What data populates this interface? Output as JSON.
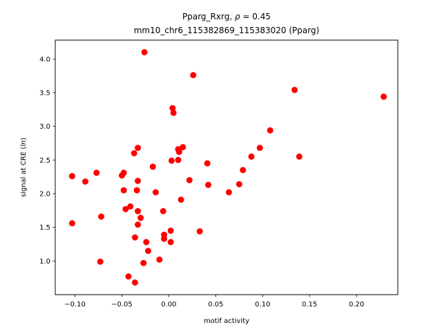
{
  "chart_data": {
    "type": "scatter",
    "title_line1": "Pparg_Rxrg, ρ = 0.45",
    "title_line2": "mm10_chr6_115382869_115383020 (Pparg)",
    "xlabel": "motif activity",
    "ylabel": "signal at CRE (ln)",
    "xlim": [
      -0.121,
      0.244
    ],
    "ylim": [
      0.5,
      4.28
    ],
    "xticks": [
      -0.1,
      -0.05,
      0.0,
      0.05,
      0.1,
      0.15,
      0.2
    ],
    "xtick_labels": [
      "−0.10",
      "−0.05",
      "0.00",
      "0.05",
      "0.10",
      "0.15",
      "0.20"
    ],
    "yticks": [
      1.0,
      1.5,
      2.0,
      2.5,
      3.0,
      3.5,
      4.0
    ],
    "ytick_labels": [
      "1.0",
      "1.5",
      "2.0",
      "2.5",
      "3.0",
      "3.5",
      "4.0"
    ],
    "grid": false,
    "marker_color": "#ff0000",
    "points": [
      {
        "x": -0.026,
        "y": 4.1
      },
      {
        "x": 0.026,
        "y": 3.76
      },
      {
        "x": 0.134,
        "y": 3.54
      },
      {
        "x": 0.229,
        "y": 3.44
      },
      {
        "x": 0.004,
        "y": 3.27
      },
      {
        "x": 0.005,
        "y": 3.2
      },
      {
        "x": 0.108,
        "y": 2.94
      },
      {
        "x": -0.033,
        "y": 2.68
      },
      {
        "x": 0.015,
        "y": 2.69
      },
      {
        "x": 0.097,
        "y": 2.68
      },
      {
        "x": 0.01,
        "y": 2.66
      },
      {
        "x": 0.011,
        "y": 2.62
      },
      {
        "x": -0.037,
        "y": 2.6
      },
      {
        "x": 0.088,
        "y": 2.55
      },
      {
        "x": 0.139,
        "y": 2.55
      },
      {
        "x": 0.003,
        "y": 2.49
      },
      {
        "x": 0.01,
        "y": 2.5
      },
      {
        "x": 0.041,
        "y": 2.45
      },
      {
        "x": -0.017,
        "y": 2.4
      },
      {
        "x": 0.079,
        "y": 2.35
      },
      {
        "x": -0.077,
        "y": 2.31
      },
      {
        "x": -0.048,
        "y": 2.31
      },
      {
        "x": -0.05,
        "y": 2.27
      },
      {
        "x": -0.103,
        "y": 2.26
      },
      {
        "x": -0.033,
        "y": 2.19
      },
      {
        "x": -0.089,
        "y": 2.18
      },
      {
        "x": 0.022,
        "y": 2.2
      },
      {
        "x": 0.075,
        "y": 2.14
      },
      {
        "x": 0.042,
        "y": 2.13
      },
      {
        "x": -0.048,
        "y": 2.05
      },
      {
        "x": -0.034,
        "y": 2.05
      },
      {
        "x": -0.014,
        "y": 2.02
      },
      {
        "x": 0.064,
        "y": 2.02
      },
      {
        "x": 0.013,
        "y": 1.91
      },
      {
        "x": -0.041,
        "y": 1.81
      },
      {
        "x": -0.046,
        "y": 1.77
      },
      {
        "x": -0.033,
        "y": 1.74
      },
      {
        "x": -0.006,
        "y": 1.74
      },
      {
        "x": -0.072,
        "y": 1.66
      },
      {
        "x": -0.03,
        "y": 1.64
      },
      {
        "x": -0.103,
        "y": 1.56
      },
      {
        "x": -0.033,
        "y": 1.54
      },
      {
        "x": 0.002,
        "y": 1.45
      },
      {
        "x": 0.033,
        "y": 1.44
      },
      {
        "x": -0.005,
        "y": 1.39
      },
      {
        "x": -0.036,
        "y": 1.35
      },
      {
        "x": -0.005,
        "y": 1.33
      },
      {
        "x": -0.024,
        "y": 1.28
      },
      {
        "x": 0.002,
        "y": 1.28
      },
      {
        "x": -0.022,
        "y": 1.15
      },
      {
        "x": -0.01,
        "y": 1.02
      },
      {
        "x": -0.073,
        "y": 0.99
      },
      {
        "x": -0.027,
        "y": 0.97
      },
      {
        "x": -0.043,
        "y": 0.77
      },
      {
        "x": -0.036,
        "y": 0.68
      }
    ]
  }
}
